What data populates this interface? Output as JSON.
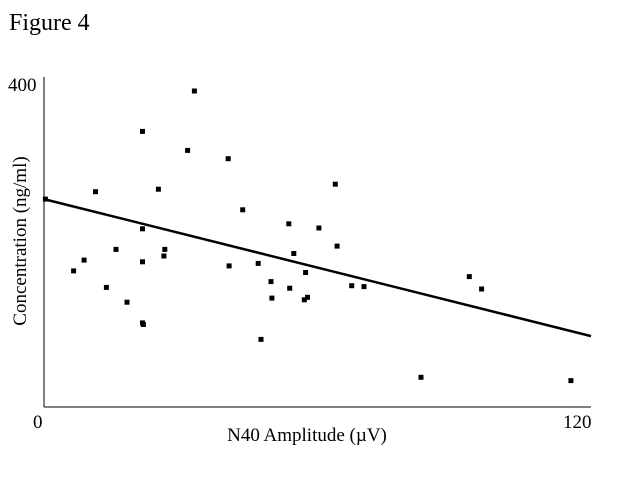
{
  "figure_label": "Figure 4",
  "chart_data": {
    "type": "scatter",
    "title": "",
    "xlabel": "N40 Amplitude (µV)",
    "ylabel": "Concentration (ng/ml)",
    "xlim": [
      0,
      120
    ],
    "ylim": [
      0,
      400
    ],
    "x_tick_labels": [
      "0",
      "120"
    ],
    "y_tick_labels": [
      "400"
    ],
    "grid": false,
    "legend": "none",
    "marker_color": "#000000",
    "line_color": "#000000",
    "points": [
      {
        "x": 0.3,
        "y": 252
      },
      {
        "x": 6.5,
        "y": 165
      },
      {
        "x": 8.8,
        "y": 178
      },
      {
        "x": 11.3,
        "y": 261
      },
      {
        "x": 13.7,
        "y": 145
      },
      {
        "x": 15.8,
        "y": 191
      },
      {
        "x": 18.2,
        "y": 127
      },
      {
        "x": 21.6,
        "y": 334
      },
      {
        "x": 21.6,
        "y": 216
      },
      {
        "x": 21.6,
        "y": 176
      },
      {
        "x": 21.6,
        "y": 102
      },
      {
        "x": 21.8,
        "y": 100
      },
      {
        "x": 25.1,
        "y": 264
      },
      {
        "x": 26.3,
        "y": 183
      },
      {
        "x": 26.5,
        "y": 191
      },
      {
        "x": 31.5,
        "y": 311
      },
      {
        "x": 33.0,
        "y": 383
      },
      {
        "x": 40.4,
        "y": 301
      },
      {
        "x": 40.6,
        "y": 171
      },
      {
        "x": 43.6,
        "y": 239
      },
      {
        "x": 47.0,
        "y": 174
      },
      {
        "x": 47.6,
        "y": 82
      },
      {
        "x": 49.8,
        "y": 152
      },
      {
        "x": 50.0,
        "y": 132
      },
      {
        "x": 53.7,
        "y": 222
      },
      {
        "x": 53.9,
        "y": 144
      },
      {
        "x": 54.8,
        "y": 186
      },
      {
        "x": 57.1,
        "y": 130
      },
      {
        "x": 57.4,
        "y": 163
      },
      {
        "x": 57.8,
        "y": 133
      },
      {
        "x": 60.3,
        "y": 217
      },
      {
        "x": 63.9,
        "y": 270
      },
      {
        "x": 64.3,
        "y": 195
      },
      {
        "x": 67.5,
        "y": 147
      },
      {
        "x": 70.2,
        "y": 146
      },
      {
        "x": 82.7,
        "y": 36
      },
      {
        "x": 93.3,
        "y": 158
      },
      {
        "x": 96.0,
        "y": 143
      },
      {
        "x": 115.6,
        "y": 32
      }
    ],
    "trendline": {
      "x": [
        0,
        120
      ],
      "y": [
        252,
        86
      ]
    }
  }
}
